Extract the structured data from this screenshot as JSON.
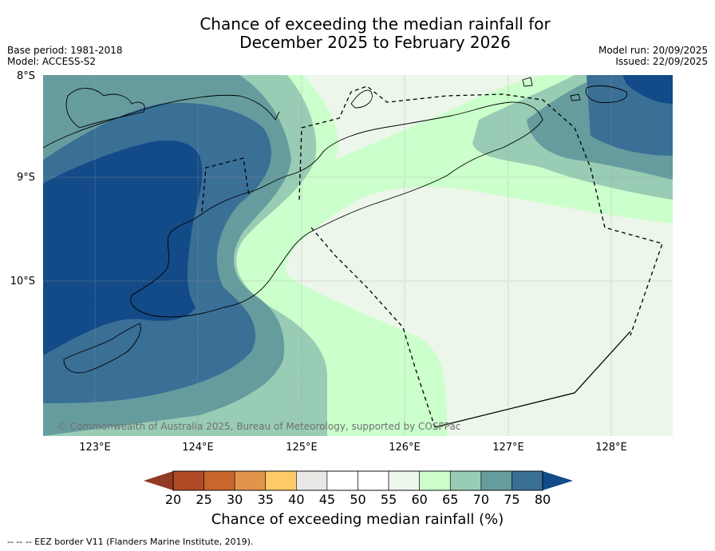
{
  "title_line1": "Chance of exceeding the median rainfall for",
  "title_line2": "December 2025 to February 2026",
  "meta_left": {
    "base_period": "Base period: 1981-2018",
    "model": "Model: ACCESS-S2"
  },
  "meta_right": {
    "model_run": "Model run: 20/09/2025",
    "issued": "Issued: 22/09/2025"
  },
  "lat_labels": [
    "8°S",
    "9°S",
    "10°S"
  ],
  "lon_labels": [
    "123°E",
    "124°E",
    "125°E",
    "126°E",
    "127°E",
    "128°E"
  ],
  "copyright": "© Commonwealth of Australia 2025, Bureau of Meteorology, supported by COSPPac",
  "colorbar": {
    "ticks": [
      "20",
      "25",
      "30",
      "35",
      "40",
      "45",
      "50",
      "55",
      "60",
      "65",
      "70",
      "75",
      "80"
    ],
    "colors": [
      "#b04a27",
      "#c9652f",
      "#e2944b",
      "#fdca66",
      "#e8e8e6",
      "#ffffff",
      "#ffffff",
      "#edf7ec",
      "#ccffcc",
      "#99ccb4",
      "#669c9e",
      "#3a6f96",
      "#124b87"
    ],
    "under_color": "#923a22",
    "over_color": "#124b87",
    "title": "Chance of exceeding median rainfall (%)"
  },
  "footnote": "--  --  -- EEZ border V11 (Flanders Marine Institute, 2019).",
  "map_colors": {
    "c55": "#ffffff",
    "c60": "#ecf6ea",
    "c65": "#cbffcb",
    "c70": "#99ccb4",
    "c75": "#669c9e",
    "c80": "#3a6f96",
    "c85": "#124b87"
  }
}
